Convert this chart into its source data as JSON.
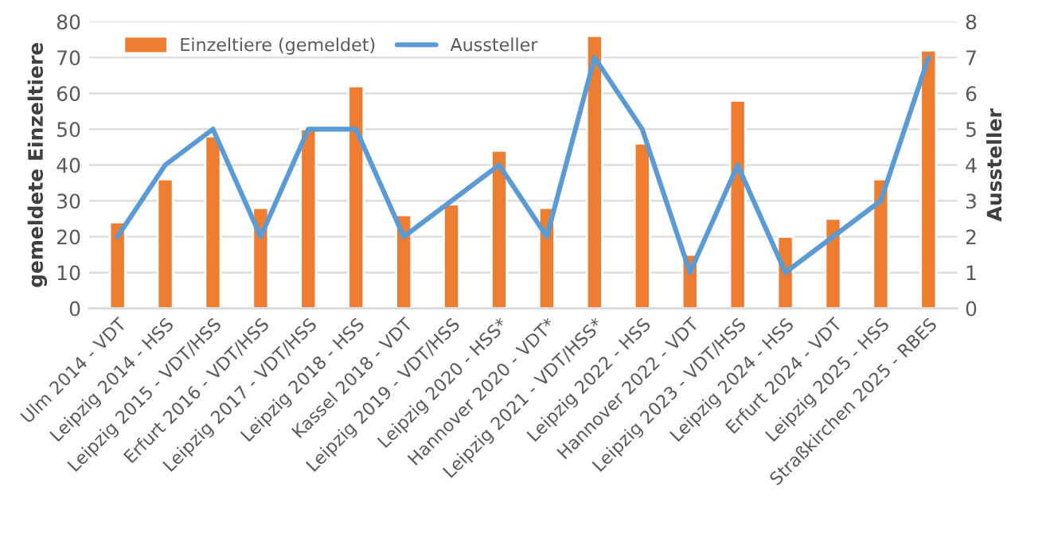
{
  "chart_data": {
    "type": "bar",
    "ylabel": "gemeldete Einzeltiere",
    "y2label": "Aussteller",
    "categories": [
      "Ulm 2014 - VDT",
      "Leipzig 2014 - HSS",
      "Leipzig 2015 - VDT/HSS",
      "Erfurt 2016 - VDT/HSS",
      "Leipzig 2017 - VDT/HSS",
      "Leipzig 2018 - HSS",
      "Kassel 2018 - VDT",
      "Leipzig 2019 - VDT/HSS",
      "Leipzig 2020 - HSS*",
      "Hannover 2020 - VDT*",
      "Leipzig 2021 - VDT/HSS*",
      "Leipzig 2022 - HSS",
      "Hannover 2022 - VDT",
      "Leipzig 2023 - VDT/HSS",
      "Leipzig 2024 - HSS",
      "Erfurt 2024 - VDT",
      "Leipzig 2025 - HSS",
      "Straßkirchen 2025 - RBES"
    ],
    "series": [
      {
        "name": "Einzeltiere (gemeldet)",
        "color": "#ed7d31",
        "values": [
          24,
          36,
          48,
          28,
          50,
          62,
          26,
          29,
          44,
          28,
          76,
          46,
          15,
          58,
          20,
          25,
          36,
          72
        ]
      },
      {
        "name": "Aussteller",
        "type": "line",
        "axis": "y2",
        "color": "#5b9bd5",
        "values": [
          2,
          4,
          5,
          2,
          5,
          5,
          2,
          3,
          4,
          2,
          7,
          5,
          1,
          4,
          1,
          2,
          3,
          7
        ]
      }
    ],
    "ylim": [
      0,
      80
    ],
    "yticks": [
      0,
      10,
      20,
      30,
      40,
      50,
      60,
      70,
      80
    ],
    "y2lim": [
      0,
      8
    ],
    "y2ticks": [
      0,
      1,
      2,
      3,
      4,
      5,
      6,
      7,
      8
    ],
    "grid": "y",
    "legend": "top",
    "marker": "none",
    "line_style": "solid"
  }
}
